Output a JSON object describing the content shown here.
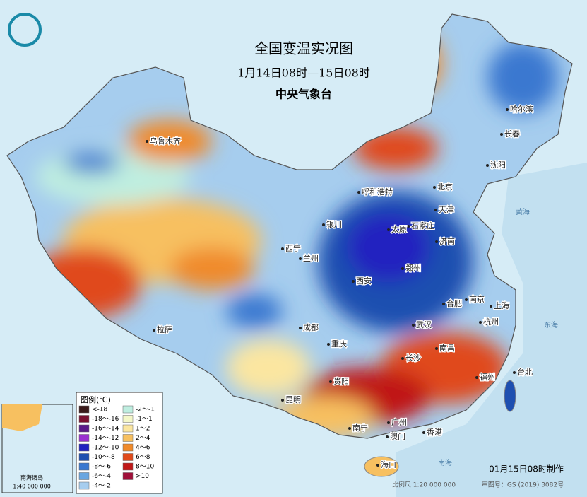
{
  "header": {
    "title": "全国变温实况图",
    "subtitle": "1月14日08时—15日08时",
    "agency": "中央气象台"
  },
  "cities": [
    "乌鲁木齐",
    "呼和浩特",
    "哈尔滨",
    "长春",
    "沈阳",
    "北京",
    "天津",
    "石家庄",
    "太原",
    "济南",
    "银川",
    "西宁",
    "兰州",
    "西安",
    "郑州",
    "南京",
    "合肥",
    "上海",
    "武汉",
    "杭州",
    "成都",
    "重庆",
    "长沙",
    "南昌",
    "拉萨",
    "贵阳",
    "昆明",
    "福州",
    "台北",
    "南宁",
    "广州",
    "香港",
    "澳门",
    "海口"
  ],
  "seas": [
    "黄海",
    "东海",
    "南海"
  ],
  "legend": {
    "title": "图例(℃)",
    "items": [
      {
        "label": "<-18",
        "color": "#3a1a1a"
      },
      {
        "label": "-18～-16",
        "color": "#7a1030"
      },
      {
        "label": "-16～-14",
        "color": "#5a1a8a"
      },
      {
        "label": "-14～-12",
        "color": "#9a30d0"
      },
      {
        "label": "-12～-10",
        "color": "#2020c0"
      },
      {
        "label": "-10～-8",
        "color": "#1e4fb0"
      },
      {
        "label": "-8～-6",
        "color": "#3a78d0"
      },
      {
        "label": "-6～-4",
        "color": "#6aa6e0"
      },
      {
        "label": "-4～-2",
        "color": "#a6cdee"
      },
      {
        "label": "-2～-1",
        "color": "#bfeee0"
      },
      {
        "label": "-1～1",
        "color": "#f4f7c8"
      },
      {
        "label": "1～2",
        "color": "#fbe6a0"
      },
      {
        "label": "2～4",
        "color": "#f7c060"
      },
      {
        "label": "4～6",
        "color": "#f08a2a"
      },
      {
        "label": "6～8",
        "color": "#e04a1a"
      },
      {
        "label": "8～10",
        "color": "#c01818"
      },
      {
        "label": ">10",
        "color": "#a0103a"
      }
    ]
  },
  "inset": {
    "title": "南海诸岛",
    "scale": "1:40 000 000"
  },
  "footer": {
    "made": "01月15日08时制作",
    "scale": "比例尺 1:20 000 000",
    "review": "审图号：GS (2019) 3082号"
  }
}
